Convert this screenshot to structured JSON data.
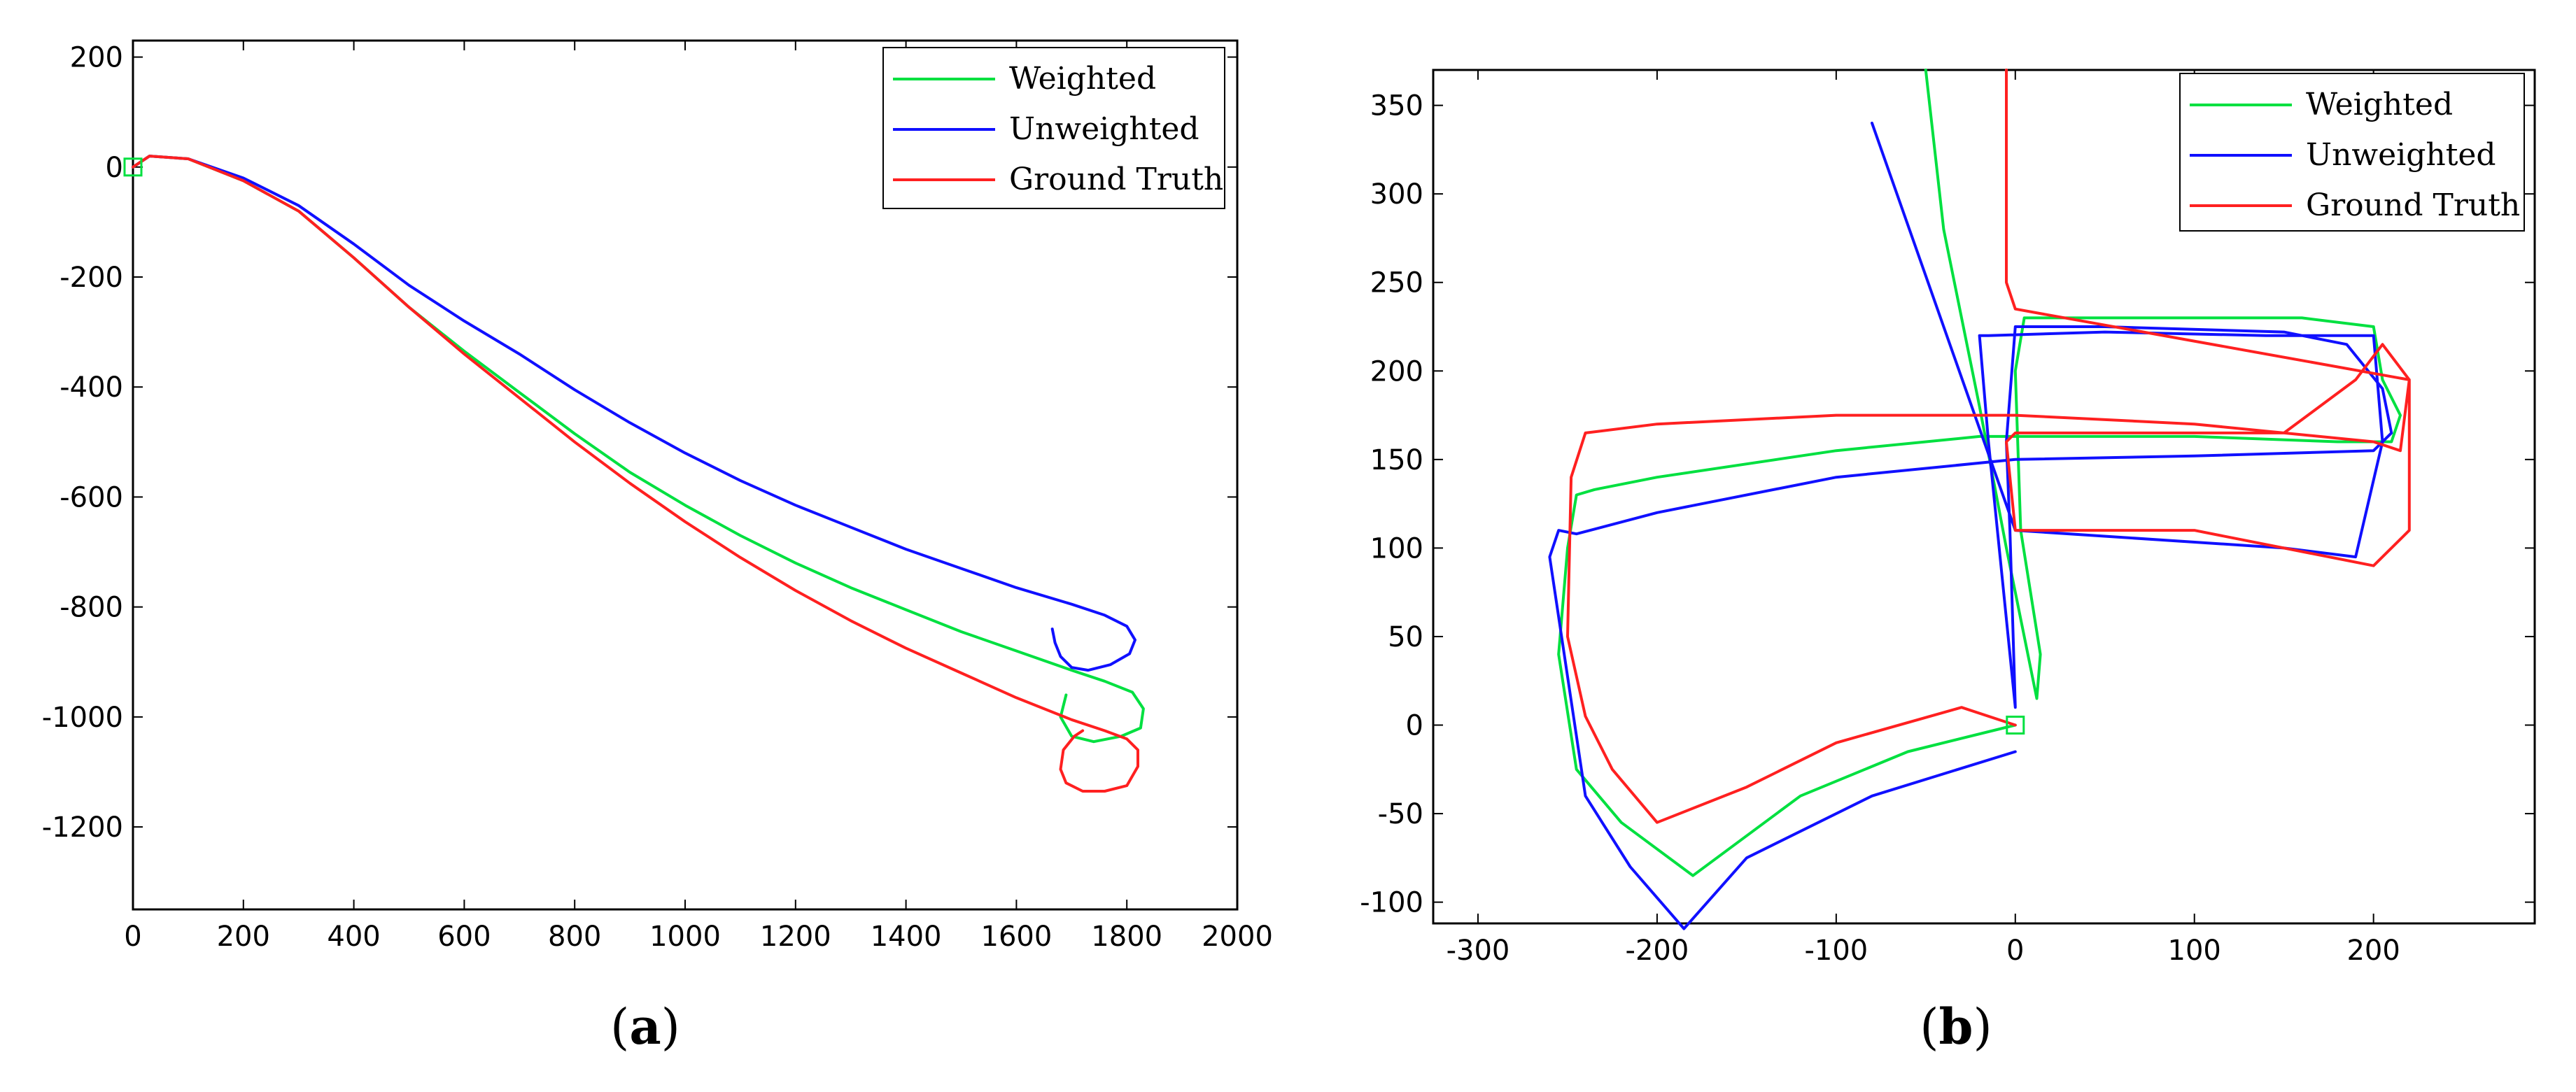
{
  "chart_data": [
    {
      "type": "line",
      "panel_label": "a",
      "title": "",
      "xlabel": "",
      "ylabel": "",
      "xlim": [
        0,
        2000
      ],
      "ylim": [
        -1350,
        230
      ],
      "xticks": [
        0,
        200,
        400,
        600,
        800,
        1000,
        1200,
        1400,
        1600,
        1800,
        2000
      ],
      "yticks": [
        200,
        0,
        -200,
        -400,
        -600,
        -800,
        -1000,
        -1200
      ],
      "grid": false,
      "legend_position": "top-right",
      "start_marker": {
        "x": 0,
        "y": 0
      },
      "series": [
        {
          "name": "Weighted",
          "color": "#00e040",
          "x": [
            0,
            30,
            100,
            200,
            300,
            400,
            500,
            600,
            700,
            800,
            900,
            1000,
            1100,
            1200,
            1300,
            1400,
            1500,
            1600,
            1700,
            1760,
            1810,
            1830,
            1825,
            1790,
            1740,
            1700,
            1680,
            1690
          ],
          "y": [
            0,
            20,
            15,
            -25,
            -80,
            -165,
            -255,
            -335,
            -410,
            -485,
            -555,
            -615,
            -670,
            -720,
            -765,
            -805,
            -845,
            -880,
            -915,
            -935,
            -955,
            -985,
            -1020,
            -1035,
            -1045,
            -1035,
            -1000,
            -960
          ]
        },
        {
          "name": "Unweighted",
          "color": "#1010ff",
          "x": [
            0,
            30,
            100,
            200,
            300,
            400,
            500,
            600,
            700,
            800,
            900,
            1000,
            1100,
            1200,
            1300,
            1400,
            1500,
            1600,
            1700,
            1760,
            1800,
            1815,
            1805,
            1770,
            1730,
            1700,
            1680,
            1670,
            1665
          ],
          "y": [
            0,
            20,
            15,
            -20,
            -70,
            -140,
            -215,
            -280,
            -340,
            -405,
            -465,
            -520,
            -570,
            -615,
            -655,
            -695,
            -730,
            -765,
            -795,
            -815,
            -835,
            -860,
            -885,
            -905,
            -915,
            -910,
            -890,
            -865,
            -840
          ]
        },
        {
          "name": "Ground Truth",
          "color": "#ff2020",
          "x": [
            0,
            30,
            100,
            200,
            300,
            400,
            500,
            600,
            700,
            800,
            900,
            1000,
            1100,
            1200,
            1300,
            1400,
            1500,
            1600,
            1700,
            1760,
            1800,
            1820,
            1820,
            1800,
            1760,
            1720,
            1690,
            1680,
            1685,
            1705,
            1720
          ],
          "y": [
            0,
            20,
            15,
            -25,
            -80,
            -165,
            -255,
            -340,
            -420,
            -500,
            -575,
            -645,
            -710,
            -770,
            -825,
            -875,
            -920,
            -965,
            -1005,
            -1025,
            -1040,
            -1060,
            -1090,
            -1125,
            -1135,
            -1135,
            -1120,
            -1095,
            -1060,
            -1035,
            -1025
          ]
        }
      ]
    },
    {
      "type": "line",
      "panel_label": "b",
      "title": "",
      "xlabel": "",
      "ylabel": "",
      "xlim": [
        -325,
        290
      ],
      "ylim": [
        -112,
        370
      ],
      "xticks": [
        -300,
        -200,
        -100,
        0,
        100,
        200
      ],
      "yticks": [
        350,
        300,
        250,
        200,
        150,
        100,
        50,
        0,
        -50,
        -100
      ],
      "grid": false,
      "legend_position": "top-right",
      "start_marker": {
        "x": 0,
        "y": 0
      },
      "series": [
        {
          "name": "Weighted",
          "color": "#00e040",
          "x": [
            0,
            -60,
            -120,
            -180,
            -220,
            -245,
            -255,
            -250,
            -245,
            -235,
            -200,
            -100,
            -20,
            0,
            30,
            100,
            180,
            210,
            215,
            205,
            200,
            160,
            100,
            40,
            5,
            0,
            3,
            14,
            12,
            -5,
            -20,
            -40,
            -50
          ],
          "y": [
            0,
            -15,
            -40,
            -85,
            -55,
            -25,
            40,
            100,
            130,
            133,
            140,
            155,
            163,
            163,
            163,
            163,
            160,
            160,
            175,
            195,
            225,
            230,
            230,
            230,
            230,
            200,
            110,
            40,
            15,
            100,
            180,
            280,
            370
          ],
          "connect_order_note": ""
        },
        {
          "name": "Unweighted",
          "color": "#1010ff",
          "x": [
            0,
            -80,
            -150,
            -185,
            -215,
            -240,
            -260,
            -255,
            -245,
            -200,
            -100,
            0,
            100,
            200,
            210,
            205,
            185,
            150,
            50,
            0,
            -5,
            -3,
            0,
            -15,
            -20,
            -15,
            50,
            140,
            200,
            205,
            190,
            150,
            0,
            -80
          ],
          "y": [
            -15,
            -40,
            -75,
            -115,
            -80,
            -40,
            95,
            110,
            108,
            120,
            140,
            150,
            152,
            155,
            165,
            190,
            215,
            222,
            225,
            225,
            160,
            110,
            10,
            160,
            220,
            220,
            222,
            220,
            220,
            160,
            95,
            100,
            110,
            340
          ]
        },
        {
          "name": "Ground Truth",
          "color": "#ff2020",
          "x": [
            0,
            -30,
            -100,
            -150,
            -200,
            -225,
            -240,
            -250,
            -248,
            -240,
            -200,
            -100,
            0,
            100,
            200,
            215,
            220,
            205,
            190,
            150,
            60,
            0,
            -5,
            0,
            0,
            0,
            10,
            100,
            200,
            220,
            220,
            0,
            -5,
            -5
          ],
          "y": [
            0,
            10,
            -10,
            -35,
            -55,
            -25,
            5,
            50,
            140,
            165,
            170,
            175,
            175,
            170,
            160,
            155,
            195,
            215,
            195,
            165,
            165,
            165,
            160,
            110,
            110,
            110,
            110,
            110,
            90,
            110,
            195,
            235,
            250,
            370
          ]
        }
      ]
    }
  ],
  "legend_labels": [
    "Weighted",
    "Unweighted",
    "Ground Truth"
  ],
  "captions": {
    "a": "a",
    "b": "b"
  }
}
